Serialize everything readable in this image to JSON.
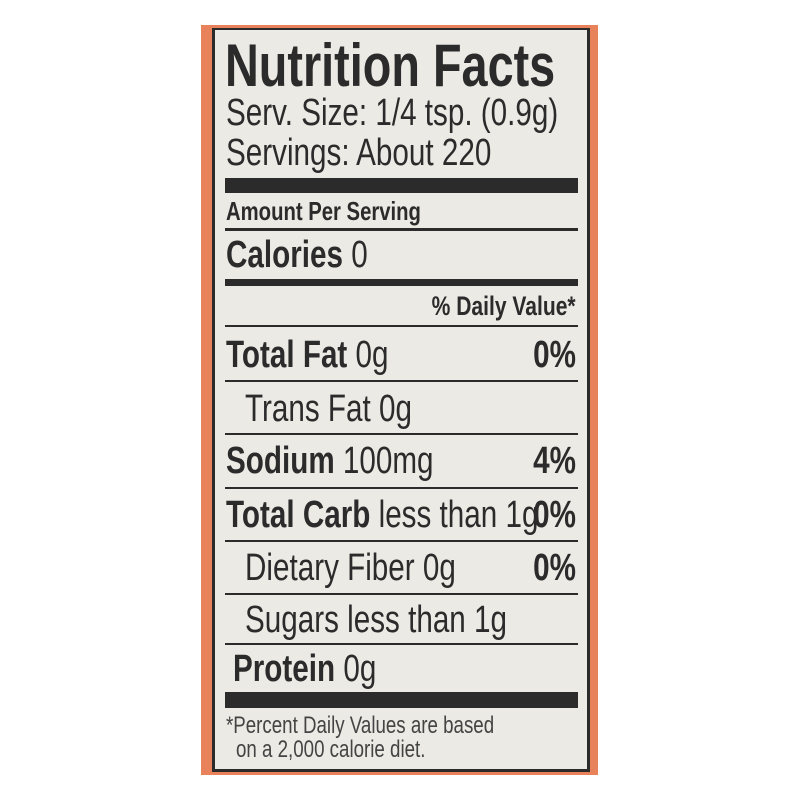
{
  "label": {
    "title": "Nutrition Facts",
    "serving_size": "Serv. Size: 1/4 tsp. (0.9g)",
    "servings": "Servings: About 220",
    "amount_per_serving": "Amount Per Serving",
    "calories_label": "Calories",
    "calories_value": "0",
    "daily_value_header": "% Daily Value*",
    "rows": [
      {
        "label": "Total Fat",
        "amount": "0g",
        "dv": "0%"
      },
      {
        "label": "Trans Fat",
        "amount": "0g",
        "dv": ""
      },
      {
        "label": "Sodium",
        "amount": "100mg",
        "dv": "4%"
      },
      {
        "label": "Total Carb",
        "amount": "less than 1g",
        "dv": "0%"
      },
      {
        "label": "Dietary Fiber",
        "amount": "0g",
        "dv": "0%"
      },
      {
        "label": "Sugars",
        "amount": "less than 1g",
        "dv": ""
      },
      {
        "label": "Protein",
        "amount": "0g",
        "dv": ""
      }
    ],
    "footnote_line1": "*Percent  Daily Values are based",
    "footnote_line2": "on a 2,000 calorie diet."
  },
  "colors": {
    "border": "#e8825a",
    "panel": "#ebeae4",
    "ink": "#2b2b2b"
  }
}
